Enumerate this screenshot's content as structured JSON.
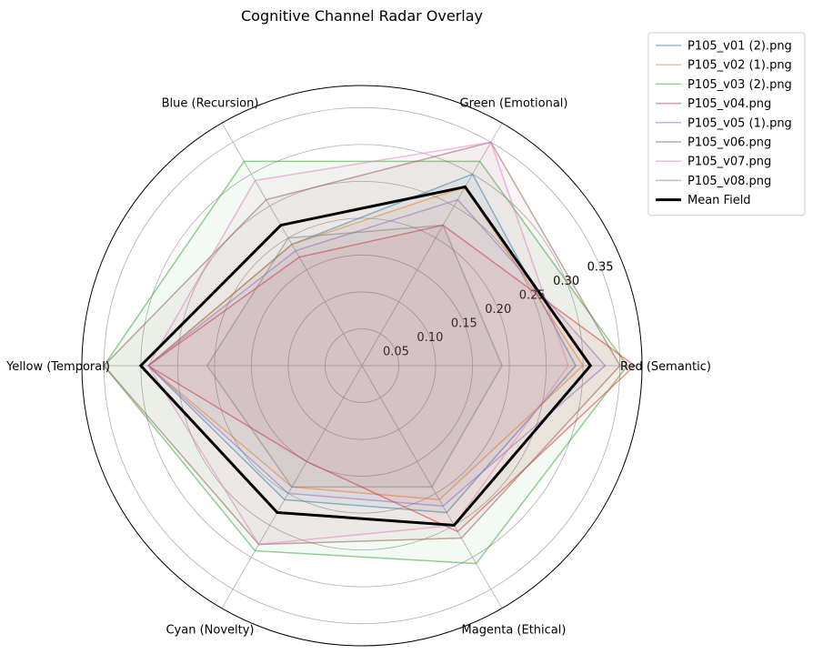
{
  "chart_data": {
    "type": "radar",
    "title": "Cognitive Channel Radar Overlay",
    "axes": [
      "Red (Semantic)",
      "Green (Emotional)",
      "Blue (Recursion)",
      "Yellow (Temporal)",
      "Cyan (Novelty)",
      "Magenta (Ethical)"
    ],
    "rlim": [
      0,
      0.38
    ],
    "rticks": [
      0.05,
      0.1,
      0.15,
      0.2,
      0.25,
      0.3,
      0.35
    ],
    "rtick_labels": [
      "0.05",
      "0.10",
      "0.15",
      "0.20",
      "0.25",
      "0.30",
      "0.35"
    ],
    "grid": true,
    "legend_position": "upper right, outside plot",
    "series": [
      {
        "name": "P105_v01 (2).png",
        "color": "#1f77b4",
        "values": [
          0.29,
          0.3,
          0.19,
          0.29,
          0.21,
          0.23
        ]
      },
      {
        "name": "P105_v02 (1).png",
        "color": "#ff7f0e",
        "values": [
          0.3,
          0.28,
          0.19,
          0.29,
          0.19,
          0.21
        ]
      },
      {
        "name": "P105_v03 (2).png",
        "color": "#2ca02c",
        "values": [
          0.36,
          0.32,
          0.32,
          0.35,
          0.29,
          0.31
        ]
      },
      {
        "name": "P105_v04.png",
        "color": "#d62728",
        "values": [
          0.37,
          0.22,
          0.17,
          0.29,
          0.15,
          0.26
        ]
      },
      {
        "name": "P105_v05 (1).png",
        "color": "#9467bd",
        "values": [
          0.33,
          0.26,
          0.18,
          0.29,
          0.2,
          0.22
        ]
      },
      {
        "name": "P105_v06.png",
        "color": "#8c564b",
        "values": [
          0.35,
          0.35,
          0.26,
          0.35,
          0.28,
          0.27
        ]
      },
      {
        "name": "P105_v07.png",
        "color": "#e377c2",
        "values": [
          0.28,
          0.35,
          0.29,
          0.29,
          0.28,
          0.25
        ]
      },
      {
        "name": "P105_v08.png",
        "color": "#7f7f7f",
        "values": [
          0.19,
          0.22,
          0.2,
          0.21,
          0.19,
          0.19
        ]
      }
    ],
    "mean": {
      "name": "Mean Field",
      "color": "#000000",
      "values": [
        0.31,
        0.28,
        0.22,
        0.3,
        0.23,
        0.25
      ]
    }
  }
}
